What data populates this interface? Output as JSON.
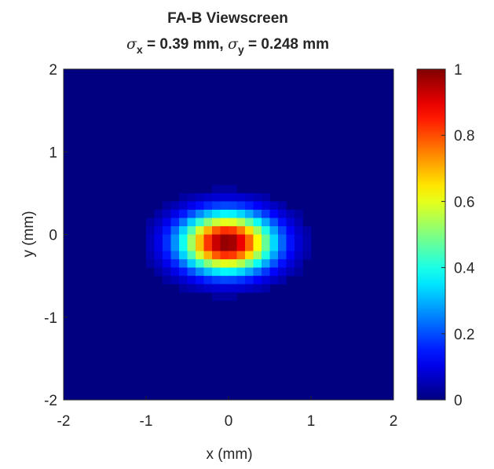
{
  "chart_data": {
    "type": "heatmap",
    "title": "FA-B Viewscreen",
    "subtitle": {
      "sigma_x_symbol": "σ",
      "sigma_x_subscript": "x",
      "sigma_x_value": " = 0.39 mm, ",
      "sigma_y_symbol": "σ",
      "sigma_y_subscript": "y",
      "sigma_y_value": " = 0.248 mm"
    },
    "xlabel": "x (mm)",
    "ylabel": "y (mm)",
    "xlim": [
      -2,
      2
    ],
    "ylim": [
      -2,
      2
    ],
    "xticks": [
      -2,
      -1,
      0,
      1,
      2
    ],
    "yticks": [
      -2,
      -1,
      0,
      1,
      2
    ],
    "colorbar": {
      "colormap": "jet",
      "range": [
        0,
        1
      ],
      "ticks": [
        0,
        0.2,
        0.4,
        0.6,
        0.8,
        1
      ],
      "tick_labels": [
        "0",
        "0.2",
        "0.4",
        "0.6",
        "0.8",
        "1"
      ]
    },
    "distribution": {
      "shape": "gaussian",
      "center_x": -0.02,
      "center_y": -0.1,
      "sigma_x": 0.39,
      "sigma_y": 0.248,
      "peak": 1,
      "threshold": 0.03
    },
    "grid_resolution": 40,
    "background_value": 0
  }
}
